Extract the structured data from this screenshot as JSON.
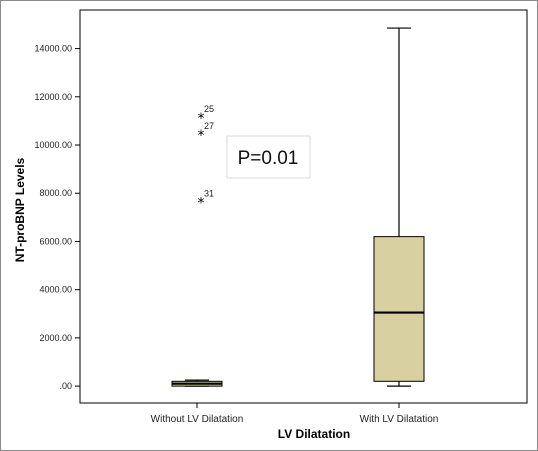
{
  "chart_data": {
    "type": "box",
    "title": "",
    "xlabel": "LV Dilatation",
    "ylabel": "NT-proBNP Levels",
    "ylim": [
      -700,
      15600
    ],
    "y_ticks": [
      0,
      2000,
      4000,
      6000,
      8000,
      10000,
      12000,
      14000
    ],
    "y_tick_labels": [
      ".00",
      "2000.00",
      "4000.00",
      "6000.00",
      "8000.00",
      "10000.00",
      "12000.00",
      "14000.00"
    ],
    "categories": [
      "Without LV Dilatation",
      "With LV Dilatation"
    ],
    "boxes": [
      {
        "category": "Without LV Dilatation",
        "min": 0,
        "q1": 0,
        "median": 100,
        "q3": 200,
        "max": 250,
        "outliers": [
          {
            "label": "25",
            "value": 11200
          },
          {
            "label": "27",
            "value": 10500
          },
          {
            "label": "31",
            "value": 7700
          }
        ]
      },
      {
        "category": "With LV Dilatation",
        "min": 0,
        "q1": 200,
        "median": 3050,
        "q3": 6200,
        "max": 14850,
        "outliers": []
      }
    ],
    "annotation": "P=0.01",
    "grid": false,
    "box_color": "#d8d0a0"
  }
}
